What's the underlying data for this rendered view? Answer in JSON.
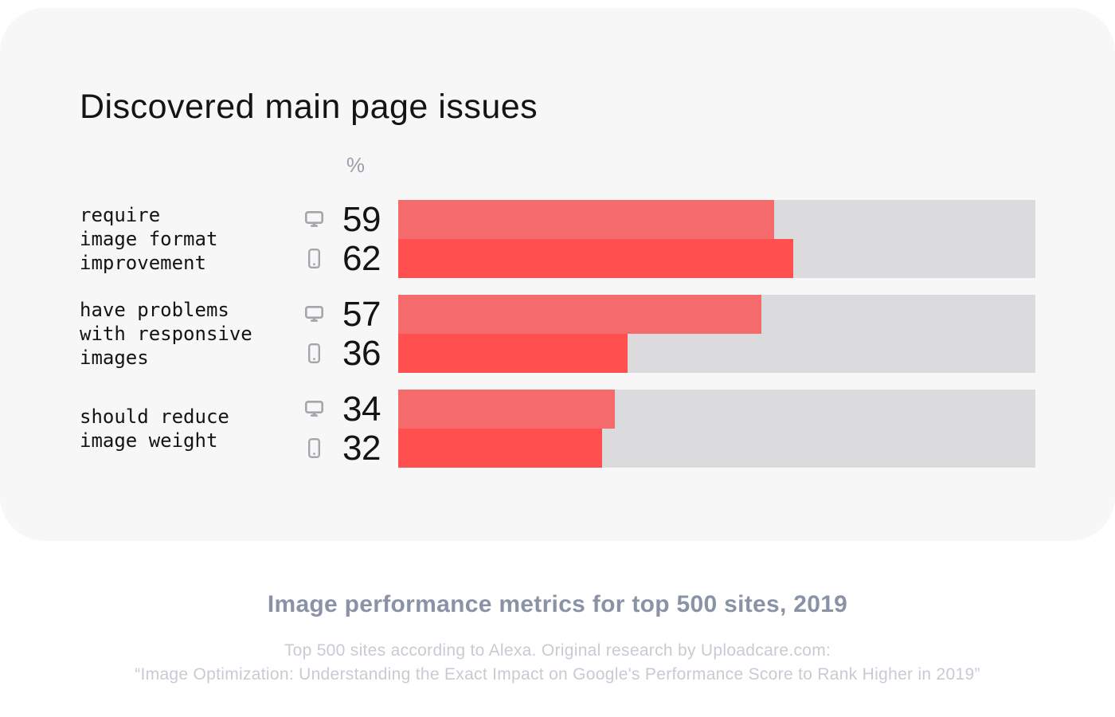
{
  "card": {
    "title": "Discovered main page issues",
    "unit_label": "%"
  },
  "chart_data": {
    "type": "bar",
    "orientation": "horizontal",
    "title": "Discovered main page issues",
    "unit": "%",
    "axis_range": [
      0,
      100
    ],
    "grid": false,
    "legend": "icons (desktop monitor / mobile phone) shown per row",
    "categories": [
      "require image format improvement",
      "have problems with responsive images",
      "should reduce image weight"
    ],
    "category_lines": [
      [
        "require",
        "image format",
        "improvement"
      ],
      [
        "have problems",
        "with responsive",
        "images"
      ],
      [
        "should reduce",
        "image weight"
      ]
    ],
    "series": [
      {
        "name": "desktop",
        "icon": "desktop-icon",
        "color": "#f56a6a",
        "values": [
          59,
          57,
          34
        ]
      },
      {
        "name": "mobile",
        "icon": "mobile-icon",
        "color": "#ff4f4f",
        "values": [
          62,
          36,
          32
        ]
      }
    ],
    "track_color": "#dbdbde",
    "icon_color": "#a4a6ab"
  },
  "footer": {
    "title": "Image performance metrics for top 500 sites, 2019",
    "caption_line1": "Top 500 sites according to Alexa. Original research by Uploadcare.com:",
    "caption_line2": "“Image Optimization: Understanding the Exact Impact on Google's Performance Score to Rank Higher in 2019”"
  },
  "colors": {
    "page_background": "#ffffff",
    "card_background": "#f7f7f8",
    "bar_track": "#dbdbde",
    "desktop_bar": "#f56a6a",
    "mobile_bar": "#ff4f4f",
    "text_primary": "#141414",
    "icon_gray": "#a4a6ab",
    "unit_gray": "#9aa0ab",
    "footer_title": "#8a93a6",
    "footer_caption": "#c7cbd3"
  }
}
